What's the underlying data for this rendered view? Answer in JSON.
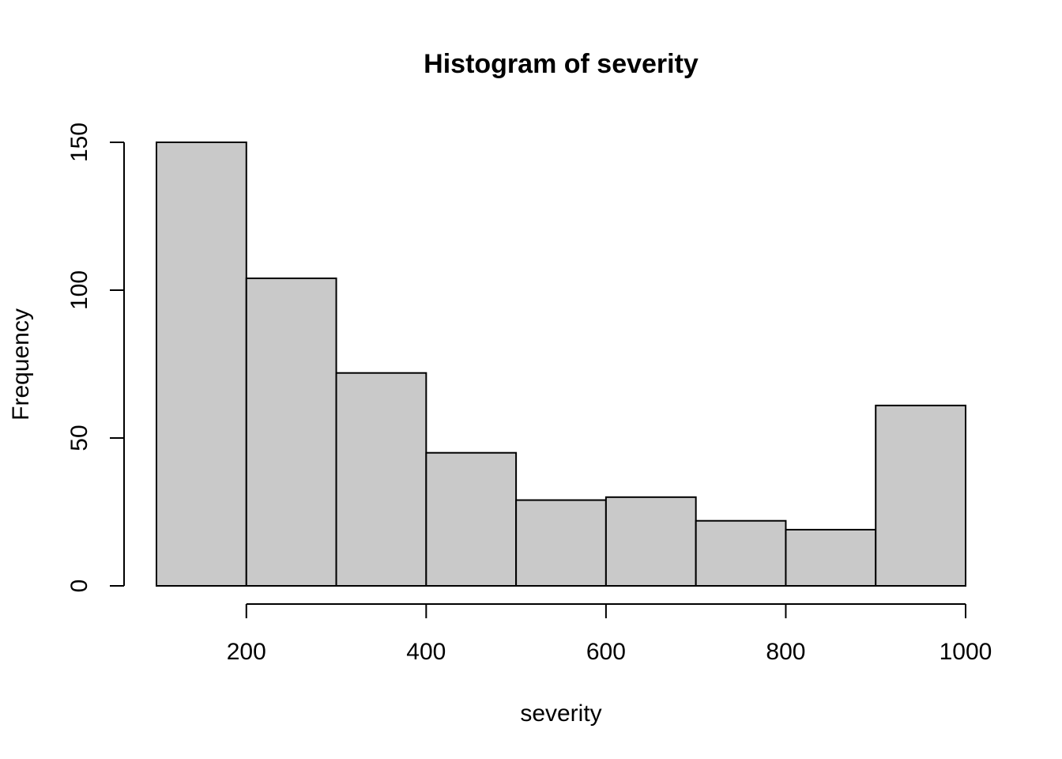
{
  "chart_data": {
    "type": "bar",
    "subtype": "histogram",
    "title": "Histogram of severity",
    "xlabel": "severity",
    "ylabel": "Frequency",
    "bins": [
      {
        "from": 100,
        "to": 200,
        "count": 150
      },
      {
        "from": 200,
        "to": 300,
        "count": 104
      },
      {
        "from": 300,
        "to": 400,
        "count": 72
      },
      {
        "from": 400,
        "to": 500,
        "count": 45
      },
      {
        "from": 500,
        "to": 600,
        "count": 29
      },
      {
        "from": 600,
        "to": 700,
        "count": 30
      },
      {
        "from": 700,
        "to": 800,
        "count": 22
      },
      {
        "from": 800,
        "to": 900,
        "count": 19
      },
      {
        "from": 900,
        "to": 1000,
        "count": 61
      }
    ],
    "x_ticks": [
      200,
      400,
      600,
      800,
      1000
    ],
    "y_ticks": [
      0,
      50,
      100,
      150
    ],
    "xlim": [
      100,
      1000
    ],
    "ylim": [
      0,
      150
    ],
    "bar_color": "#c9c9c9",
    "grid": false
  }
}
